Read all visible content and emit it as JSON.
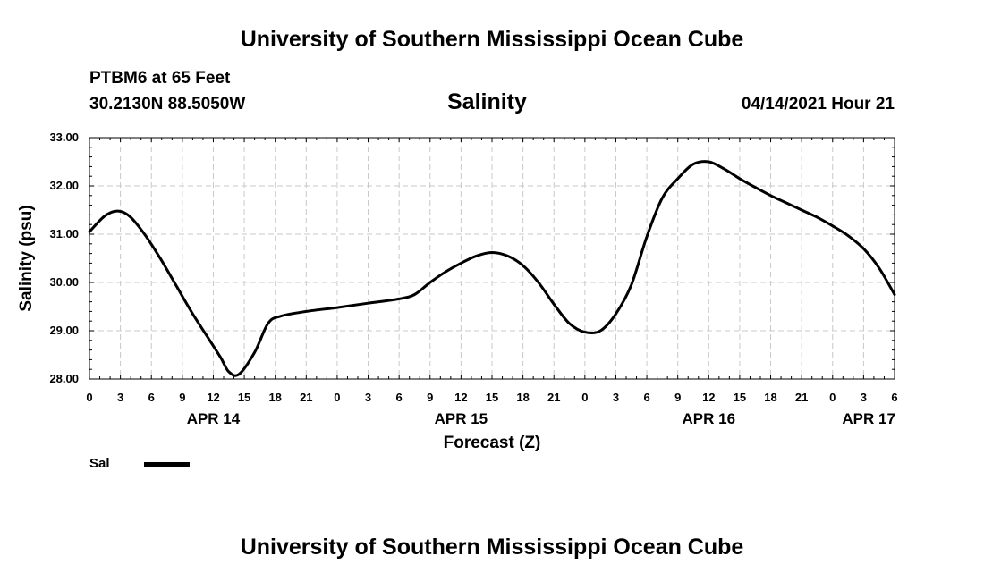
{
  "header": {
    "title_top": "University of Southern Mississippi Ocean Cube",
    "station": "PTBM6 at 65 Feet",
    "coords": "30.2130N  88.5050W",
    "issued": "04/14/2021 Hour 21"
  },
  "footer": {
    "title_bottom": "University of Southern Mississippi Ocean Cube"
  },
  "chart_data": {
    "type": "line",
    "title": "Salinity",
    "xlabel": "Forecast (Z)",
    "ylabel": "Salinity (psu)",
    "xlim": [
      0,
      78
    ],
    "ylim": [
      28,
      33
    ],
    "grid": true,
    "yticks": [
      {
        "value": 28,
        "label": "28.00"
      },
      {
        "value": 29,
        "label": "29.00"
      },
      {
        "value": 30,
        "label": "30.00"
      },
      {
        "value": 31,
        "label": "31.00"
      },
      {
        "value": 32,
        "label": "32.00"
      },
      {
        "value": 33,
        "label": "33.00"
      }
    ],
    "xticks": [
      {
        "value": 0,
        "label": "0"
      },
      {
        "value": 3,
        "label": "3"
      },
      {
        "value": 6,
        "label": "6"
      },
      {
        "value": 9,
        "label": "9"
      },
      {
        "value": 12,
        "label": "12"
      },
      {
        "value": 15,
        "label": "15"
      },
      {
        "value": 18,
        "label": "18"
      },
      {
        "value": 21,
        "label": "21"
      },
      {
        "value": 24,
        "label": "0"
      },
      {
        "value": 27,
        "label": "3"
      },
      {
        "value": 30,
        "label": "6"
      },
      {
        "value": 33,
        "label": "9"
      },
      {
        "value": 36,
        "label": "12"
      },
      {
        "value": 39,
        "label": "15"
      },
      {
        "value": 42,
        "label": "18"
      },
      {
        "value": 45,
        "label": "21"
      },
      {
        "value": 48,
        "label": "0"
      },
      {
        "value": 51,
        "label": "3"
      },
      {
        "value": 54,
        "label": "6"
      },
      {
        "value": 57,
        "label": "9"
      },
      {
        "value": 60,
        "label": "12"
      },
      {
        "value": 63,
        "label": "15"
      },
      {
        "value": 66,
        "label": "18"
      },
      {
        "value": 69,
        "label": "21"
      },
      {
        "value": 72,
        "label": "0"
      },
      {
        "value": 75,
        "label": "3"
      },
      {
        "value": 78,
        "label": "6"
      }
    ],
    "date_labels": [
      {
        "value": 12,
        "label": "APR 14"
      },
      {
        "value": 36,
        "label": "APR 15"
      },
      {
        "value": 60,
        "label": "APR 16"
      },
      {
        "value": 75.5,
        "label": "APR 17"
      }
    ],
    "series": [
      {
        "name": "Sal",
        "color": "#000000",
        "x": [
          0,
          1.5,
          2.8,
          4,
          5.5,
          7,
          8.5,
          10,
          11.5,
          12.7,
          13.5,
          14.5,
          16,
          17.3,
          18.5,
          21,
          24,
          27,
          30,
          31.5,
          33,
          34.5,
          36,
          37.5,
          39,
          40.5,
          42,
          43.5,
          45,
          46.5,
          48,
          49.5,
          51,
          52.5,
          54,
          55.5,
          57,
          58.5,
          60,
          61.5,
          63,
          64.5,
          66,
          67.5,
          69,
          70.5,
          72,
          73.5,
          75,
          76.5,
          78
        ],
        "y": [
          31.05,
          31.38,
          31.48,
          31.35,
          30.95,
          30.45,
          29.9,
          29.35,
          28.85,
          28.45,
          28.15,
          28.1,
          28.55,
          29.15,
          29.3,
          29.4,
          29.48,
          29.57,
          29.66,
          29.75,
          30.0,
          30.22,
          30.4,
          30.55,
          30.62,
          30.55,
          30.35,
          30.0,
          29.55,
          29.15,
          28.97,
          29.0,
          29.35,
          29.95,
          30.95,
          31.75,
          32.15,
          32.45,
          32.5,
          32.35,
          32.15,
          31.97,
          31.8,
          31.65,
          31.5,
          31.35,
          31.17,
          30.97,
          30.7,
          30.3,
          29.75
        ]
      }
    ]
  }
}
